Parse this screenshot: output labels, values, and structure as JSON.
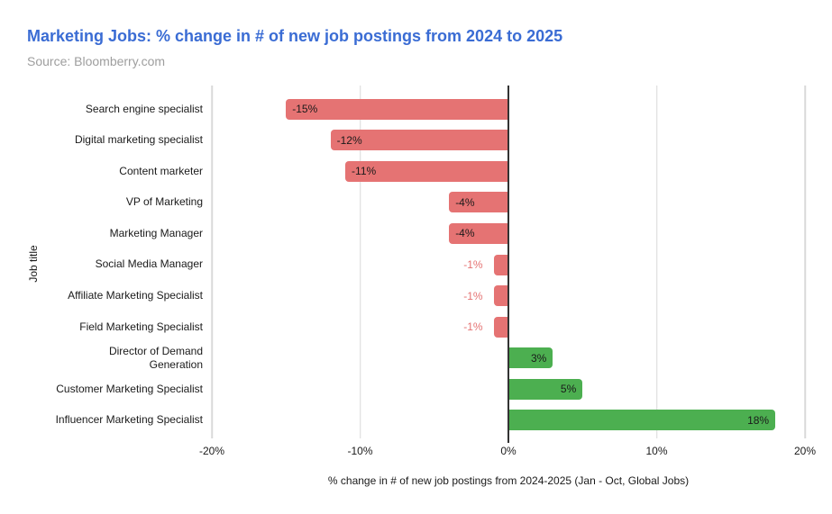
{
  "header": {
    "title": "Marketing Jobs: % change in # of new job postings from 2024 to 2025",
    "source": "Source: Bloomberry.com"
  },
  "chart_data": {
    "type": "bar",
    "orientation": "horizontal",
    "title": "Marketing Jobs: % change in # of new job postings from 2024 to 2025",
    "subtitle": "Source: Bloomberry.com",
    "categories": [
      "Search engine specialist",
      "Digital marketing specialist",
      "Content marketer",
      "VP of Marketing",
      "Marketing Manager",
      "Social Media Manager",
      "Affiliate Marketing Specialist",
      "Field Marketing Specialist",
      "Director of Demand\nGeneration",
      "Customer Marketing Specialist",
      "Influencer Marketing Specialist"
    ],
    "values": [
      -15,
      -12,
      -11,
      -4,
      -4,
      -1,
      -1,
      -1,
      3,
      5,
      18
    ],
    "bar_labels": [
      "-15%",
      "-12%",
      "-11%",
      "-4%",
      "-4%",
      "-1%",
      "-1%",
      "-1%",
      "3%",
      "5%",
      "18%"
    ],
    "xlabel": "% change in # of new job postings from 2024-2025 (Jan - Oct, Global Jobs)",
    "ylabel": "Job title",
    "xlim": [
      -20,
      20
    ],
    "x_ticks": [
      {
        "value": -20,
        "label": "-20%"
      },
      {
        "value": -10,
        "label": "-10%"
      },
      {
        "value": 0,
        "label": "0%"
      },
      {
        "value": 10,
        "label": "10%"
      },
      {
        "value": 20,
        "label": "20%"
      }
    ],
    "grid": true,
    "legend": false,
    "colors": {
      "negative": "#e57373",
      "positive": "#4caf50",
      "gridline": "#d9d9d9",
      "zero_line": "#333333",
      "text": "#1a1a1a",
      "title": "#3a6cd4",
      "source": "#9e9e9e"
    }
  }
}
